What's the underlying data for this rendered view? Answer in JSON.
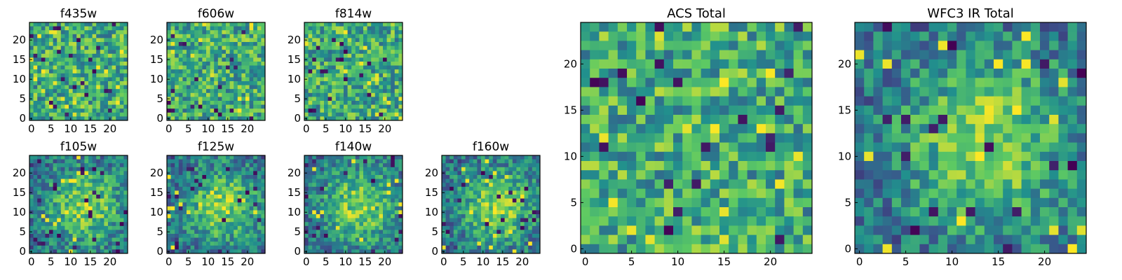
{
  "figure": {
    "background": "#ffffff",
    "colormap": [
      "#440154",
      "#3b528b",
      "#21908d",
      "#5dc963",
      "#fde725"
    ]
  },
  "chart_data": [
    {
      "type": "heatmap",
      "title": "f435w",
      "xticks": [
        "0",
        "5",
        "10",
        "15",
        "20"
      ],
      "yticks": [
        "0",
        "5",
        "10",
        "15",
        "20"
      ],
      "xlim": [
        0,
        24
      ],
      "ylim": [
        0,
        24
      ],
      "grid_size": 25,
      "texture": "noise"
    },
    {
      "type": "heatmap",
      "title": "f606w",
      "xticks": [
        "0",
        "5",
        "10",
        "15",
        "20"
      ],
      "yticks": [
        "0",
        "5",
        "10",
        "15",
        "20"
      ],
      "xlim": [
        0,
        24
      ],
      "ylim": [
        0,
        24
      ],
      "grid_size": 25,
      "texture": "noise"
    },
    {
      "type": "heatmap",
      "title": "f814w",
      "xticks": [
        "0",
        "5",
        "10",
        "15",
        "20"
      ],
      "yticks": [
        "0",
        "5",
        "10",
        "15",
        "20"
      ],
      "xlim": [
        0,
        24
      ],
      "ylim": [
        0,
        24
      ],
      "grid_size": 25,
      "texture": "noise"
    },
    {
      "type": "heatmap",
      "title": "f105w",
      "xticks": [
        "0",
        "5",
        "10",
        "15",
        "20"
      ],
      "yticks": [
        "0",
        "5",
        "10",
        "15",
        "20"
      ],
      "xlim": [
        0,
        24
      ],
      "ylim": [
        0,
        24
      ],
      "grid_size": 25,
      "texture": "central-blob"
    },
    {
      "type": "heatmap",
      "title": "f125w",
      "xticks": [
        "0",
        "5",
        "10",
        "15",
        "20"
      ],
      "yticks": [
        "0",
        "5",
        "10",
        "15",
        "20"
      ],
      "xlim": [
        0,
        24
      ],
      "ylim": [
        0,
        24
      ],
      "grid_size": 25,
      "texture": "central-blob"
    },
    {
      "type": "heatmap",
      "title": "f140w",
      "xticks": [
        "0",
        "5",
        "10",
        "15",
        "20"
      ],
      "yticks": [
        "0",
        "5",
        "10",
        "15",
        "20"
      ],
      "xlim": [
        0,
        24
      ],
      "ylim": [
        0,
        24
      ],
      "grid_size": 25,
      "texture": "central-blob"
    },
    {
      "type": "heatmap",
      "title": "f160w",
      "xticks": [
        "0",
        "5",
        "10",
        "15",
        "20"
      ],
      "yticks": [
        "0",
        "5",
        "10",
        "15",
        "20"
      ],
      "xlim": [
        0,
        24
      ],
      "ylim": [
        0,
        24
      ],
      "grid_size": 25,
      "texture": "central-blob"
    },
    {
      "type": "heatmap",
      "title": "ACS Total",
      "xticks": [
        "0",
        "5",
        "10",
        "15",
        "20"
      ],
      "yticks": [
        "0",
        "5",
        "10",
        "15",
        "20"
      ],
      "xlim": [
        0,
        24
      ],
      "ylim": [
        0,
        24
      ],
      "grid_size": 25,
      "texture": "noise"
    },
    {
      "type": "heatmap",
      "title": "WFC3 IR Total",
      "xticks": [
        "0",
        "5",
        "10",
        "15",
        "20"
      ],
      "yticks": [
        "0",
        "5",
        "10",
        "15",
        "20"
      ],
      "xlim": [
        0,
        24
      ],
      "ylim": [
        0,
        24
      ],
      "grid_size": 25,
      "texture": "central-blob"
    }
  ]
}
